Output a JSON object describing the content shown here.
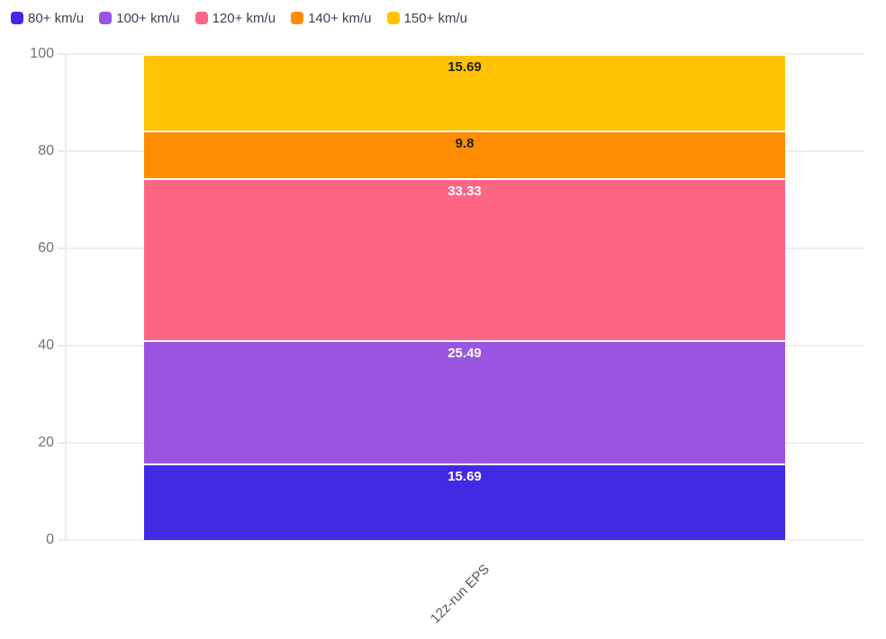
{
  "chart_data": {
    "type": "bar",
    "stacked": true,
    "stack_total": 100,
    "orientation": "vertical",
    "categories": [
      "12z-run EPS"
    ],
    "series": [
      {
        "name": "80+ km/u",
        "values": [
          15.69
        ],
        "display": "15.69",
        "color": "#4328e4",
        "label_color": "#ffffff"
      },
      {
        "name": "100+ km/u",
        "values": [
          25.49
        ],
        "display": "25.49",
        "color": "#9a55e0",
        "label_color": "#ffffff"
      },
      {
        "name": "120+ km/u",
        "values": [
          33.33
        ],
        "display": "33.33",
        "color": "#fd6585",
        "label_color": "#ffffff"
      },
      {
        "name": "140+ km/u",
        "values": [
          9.8
        ],
        "display": "9.8",
        "color": "#ff8d00",
        "label_color": "#1f1f1f"
      },
      {
        "name": "150+ km/u",
        "values": [
          15.69
        ],
        "display": "15.69",
        "color": "#ffc302",
        "label_color": "#1f1f1f"
      }
    ],
    "title": "",
    "xlabel": "",
    "ylabel": "",
    "ylim": [
      0,
      100
    ],
    "yticks": [
      0,
      20,
      40,
      60,
      80,
      100
    ],
    "grid": true,
    "legend_position": "top-left",
    "segment_divider_color": "#ffffff",
    "background_color": "#ffffff",
    "axis_text_color": "#71717a",
    "legend_text_color": "#3c4152"
  }
}
